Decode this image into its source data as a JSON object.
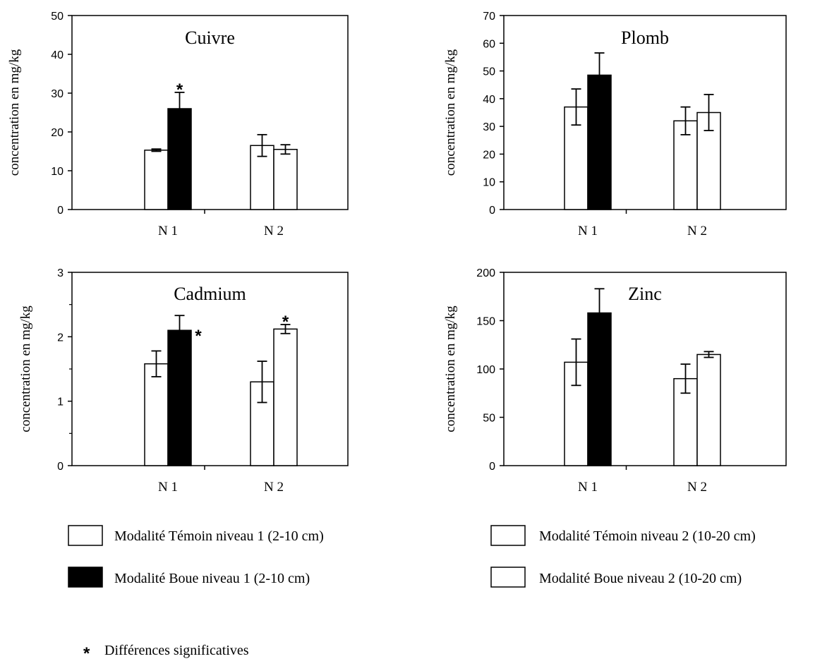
{
  "chart_data": [
    {
      "type": "bar",
      "title": "Cuivre",
      "ylabel": "concentration en mg/kg",
      "categories": [
        "N 1",
        "N 2"
      ],
      "ylim": [
        0,
        50
      ],
      "yticks": [
        0,
        10,
        20,
        30,
        40,
        50
      ],
      "series": [
        {
          "values": [
            15.3,
            16.5
          ],
          "errors": [
            0.3,
            2.8
          ],
          "color": "#ffffff"
        },
        {
          "values": [
            26.0,
            15.5
          ],
          "errors": [
            4.2,
            1.2
          ],
          "color": "#000000"
        }
      ],
      "significant_markers": [
        {
          "category": 0,
          "series": 1,
          "label": "*"
        }
      ]
    },
    {
      "type": "bar",
      "title": "Plomb",
      "ylabel": "concentration en mg/kg",
      "categories": [
        "N 1",
        "N 2"
      ],
      "ylim": [
        0,
        70
      ],
      "yticks": [
        0,
        10,
        20,
        30,
        40,
        50,
        60,
        70
      ],
      "series": [
        {
          "values": [
            37.0,
            32.0
          ],
          "errors": [
            6.5,
            5.0
          ],
          "color": "#ffffff"
        },
        {
          "values": [
            48.5,
            35.0
          ],
          "errors": [
            8.0,
            6.5
          ],
          "color": "#000000"
        }
      ],
      "significant_markers": []
    },
    {
      "type": "bar",
      "title": "Cadmium",
      "ylabel": "concentration en mg/kg",
      "categories": [
        "N 1",
        "N 2"
      ],
      "ylim": [
        0,
        3
      ],
      "yticks": [
        0,
        1,
        2,
        3
      ],
      "yminor": [
        0.5,
        1.5,
        2.5
      ],
      "series": [
        {
          "values": [
            1.58,
            1.3
          ],
          "errors": [
            0.2,
            0.32
          ],
          "color": "#ffffff"
        },
        {
          "values": [
            2.1,
            2.12
          ],
          "errors": [
            0.23,
            0.07
          ],
          "color": "#000000"
        }
      ],
      "significant_markers": [
        {
          "category": 0,
          "series": 1,
          "label": "*"
        },
        {
          "category": 1,
          "series": 1,
          "label": "*"
        }
      ]
    },
    {
      "type": "bar",
      "title": "Zinc",
      "ylabel": "concentration en mg/kg",
      "categories": [
        "N 1",
        "N 2"
      ],
      "ylim": [
        0,
        200
      ],
      "yticks": [
        0,
        50,
        100,
        150,
        200
      ],
      "series": [
        {
          "values": [
            107,
            90
          ],
          "errors": [
            24,
            15
          ],
          "color": "#ffffff"
        },
        {
          "values": [
            158,
            115
          ],
          "errors": [
            25,
            3
          ],
          "color": "#000000"
        }
      ],
      "significant_markers": []
    }
  ],
  "legend": {
    "items": [
      {
        "label": "Modalité Témoin  niveau 1 (2-10 cm)",
        "fill": "#ffffff"
      },
      {
        "label": "Modalité Boue niveau 1 (2-10 cm)",
        "fill": "#000000"
      },
      {
        "label": "Modalité Témoin niveau 2 (10-20 cm)",
        "fill": "#ffffff"
      },
      {
        "label": "Modalité Boue niveau 2 (10-20 cm)",
        "fill": "#ffffff"
      }
    ],
    "significance_symbol": "*",
    "significance_label": "Différences significatives"
  }
}
